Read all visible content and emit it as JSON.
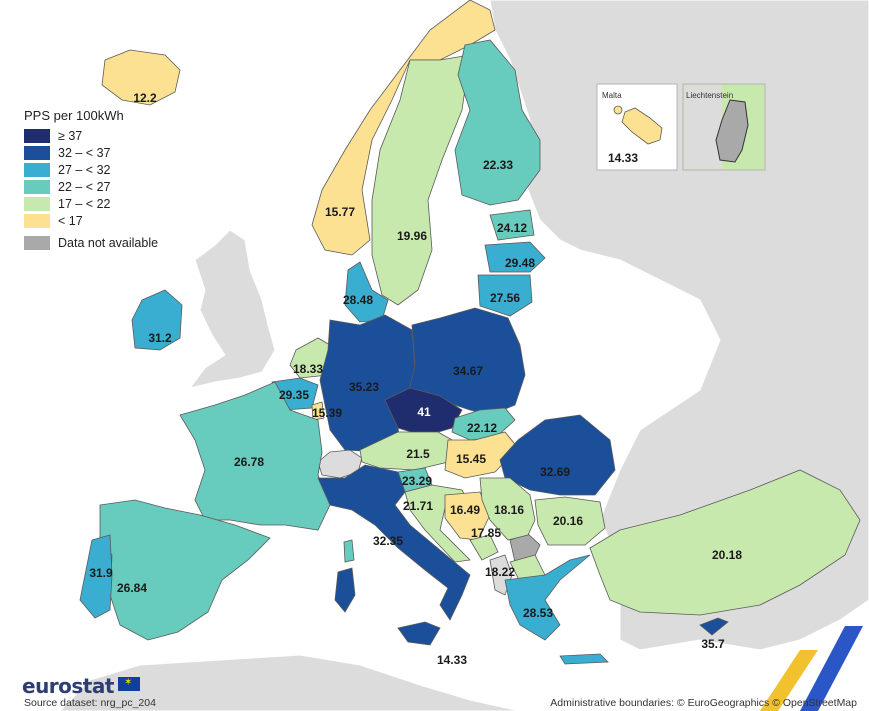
{
  "legend": {
    "title": "PPS per 100kWh",
    "classes": [
      {
        "label": "≥ 37",
        "color": "#1f2d6e"
      },
      {
        "label": "32 – < 37",
        "color": "#1c4f9a"
      },
      {
        "label": "27 – < 32",
        "color": "#3aaed0"
      },
      {
        "label": "22 – < 27",
        "color": "#67cbbd"
      },
      {
        "label": "17 – < 22",
        "color": "#c8e9ad"
      },
      {
        "label": "< 17",
        "color": "#fbe191"
      }
    ],
    "na": {
      "label": "Data not available",
      "color": "#a9a9a9"
    }
  },
  "colors": {
    "sea": "#ffffff",
    "non_eu_land": "#dcdcdc",
    "border": "#5a5a5a"
  },
  "regions": [
    {
      "name": "Iceland",
      "value": "12.2"
    },
    {
      "name": "Norway",
      "value": "15.77"
    },
    {
      "name": "Sweden",
      "value": "19.96"
    },
    {
      "name": "Finland",
      "value": "22.33"
    },
    {
      "name": "Estonia",
      "value": "24.12"
    },
    {
      "name": "Latvia",
      "value": "29.48"
    },
    {
      "name": "Lithuania",
      "value": "27.56"
    },
    {
      "name": "Denmark",
      "value": "28.48"
    },
    {
      "name": "Ireland",
      "value": "31.2"
    },
    {
      "name": "Netherlands",
      "value": "18.33"
    },
    {
      "name": "Belgium",
      "value": "29.35"
    },
    {
      "name": "Luxembourg",
      "value": "15.39"
    },
    {
      "name": "Germany",
      "value": "35.23"
    },
    {
      "name": "Poland",
      "value": "34.67"
    },
    {
      "name": "Czechia",
      "value": "41"
    },
    {
      "name": "Slovakia",
      "value": "22.12"
    },
    {
      "name": "Austria",
      "value": "21.5"
    },
    {
      "name": "Hungary",
      "value": "15.45"
    },
    {
      "name": "Romania",
      "value": "32.69"
    },
    {
      "name": "France",
      "value": "26.78"
    },
    {
      "name": "Slovenia",
      "value": "23.29"
    },
    {
      "name": "Croatia",
      "value": "21.71"
    },
    {
      "name": "Bosnia and Herzegovina",
      "value": "16.49"
    },
    {
      "name": "Serbia",
      "value": "18.16"
    },
    {
      "name": "Montenegro",
      "value": "17.85"
    },
    {
      "name": "Bulgaria",
      "value": "20.16"
    },
    {
      "name": "North Macedonia",
      "value": "18.22"
    },
    {
      "name": "Italy",
      "value": "32.35"
    },
    {
      "name": "Spain",
      "value": "26.84"
    },
    {
      "name": "Portugal",
      "value": "31.9"
    },
    {
      "name": "Greece",
      "value": "28.53"
    },
    {
      "name": "Türkiye",
      "value": "20.18"
    },
    {
      "name": "Cyprus",
      "value": "35.7"
    },
    {
      "name": "Malta",
      "value": "14.33"
    }
  ],
  "insets": {
    "malta": {
      "title": "Malta",
      "value": "14.33"
    },
    "liechtenstein": {
      "title": "Liechtenstein"
    }
  },
  "footer": {
    "logo": "eurostat",
    "source": "Source dataset: nrg_pc_204",
    "credits": "Administrative boundaries: © EuroGeographics © OpenStreetMap"
  }
}
